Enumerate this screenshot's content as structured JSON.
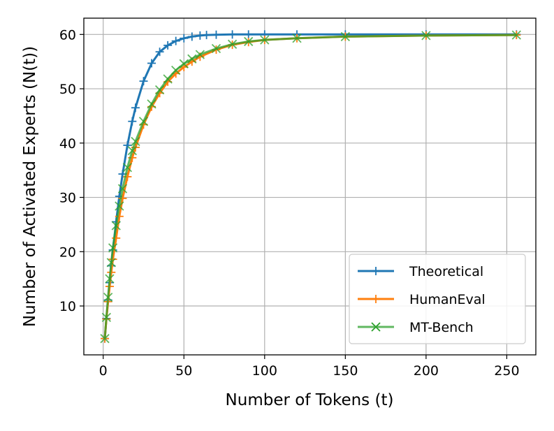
{
  "chart_data": {
    "type": "line",
    "xlabel": "Number of Tokens (t)",
    "ylabel": "Number of Activated Experts (N(t))",
    "xlim": [
      -12,
      268
    ],
    "ylim": [
      1,
      63
    ],
    "xticks": [
      0,
      50,
      100,
      150,
      200,
      250
    ],
    "yticks": [
      10,
      20,
      30,
      40,
      50,
      60
    ],
    "grid": true,
    "legend_position": "lower-right",
    "series": [
      {
        "name": "Theoretical",
        "color": "#1f77b4",
        "marker": "+",
        "x": [
          1,
          2,
          3,
          4,
          5,
          6,
          8,
          10,
          12,
          15,
          18,
          20,
          25,
          30,
          35,
          40,
          45,
          50,
          55,
          60,
          64,
          70,
          80,
          90,
          100,
          120,
          150,
          200,
          256
        ],
        "y": [
          4,
          7.7,
          11.1,
          14.3,
          17.4,
          20.3,
          25.5,
          30.2,
          34.3,
          39.6,
          44.0,
          46.5,
          51.4,
          54.7,
          56.8,
          58.0,
          58.8,
          59.3,
          59.6,
          59.8,
          59.9,
          59.95,
          60,
          60,
          60,
          60,
          60,
          60,
          60
        ]
      },
      {
        "name": "HumanEval",
        "color": "#ff7f0e",
        "marker": "+",
        "x": [
          1,
          2,
          3,
          4,
          5,
          6,
          8,
          10,
          12,
          15,
          18,
          20,
          25,
          30,
          35,
          40,
          45,
          50,
          55,
          60,
          70,
          80,
          90,
          100,
          120,
          150,
          200,
          256
        ],
        "y": [
          4,
          7.6,
          10.8,
          13.6,
          16.2,
          18.6,
          22.5,
          26.5,
          29.8,
          33.8,
          37.3,
          39.2,
          43.4,
          46.7,
          49.2,
          51.3,
          52.8,
          54.0,
          55.0,
          55.9,
          57.2,
          58.1,
          58.6,
          59.0,
          59.3,
          59.6,
          59.8,
          59.9
        ]
      },
      {
        "name": "MT-Bench",
        "color": "#2ca02c",
        "marker": "x",
        "x": [
          1,
          2,
          3,
          4,
          5,
          6,
          8,
          10,
          12,
          15,
          18,
          20,
          25,
          30,
          35,
          40,
          45,
          50,
          55,
          60,
          70,
          80,
          90,
          100,
          120,
          150,
          200,
          256
        ],
        "y": [
          4,
          7.9,
          11.6,
          15.0,
          18.0,
          20.7,
          24.8,
          28.4,
          31.6,
          35.5,
          38.6,
          40.3,
          44.0,
          47.2,
          49.8,
          51.8,
          53.4,
          54.6,
          55.5,
          56.3,
          57.4,
          58.2,
          58.7,
          59.0,
          59.3,
          59.6,
          59.8,
          59.9
        ]
      }
    ]
  }
}
